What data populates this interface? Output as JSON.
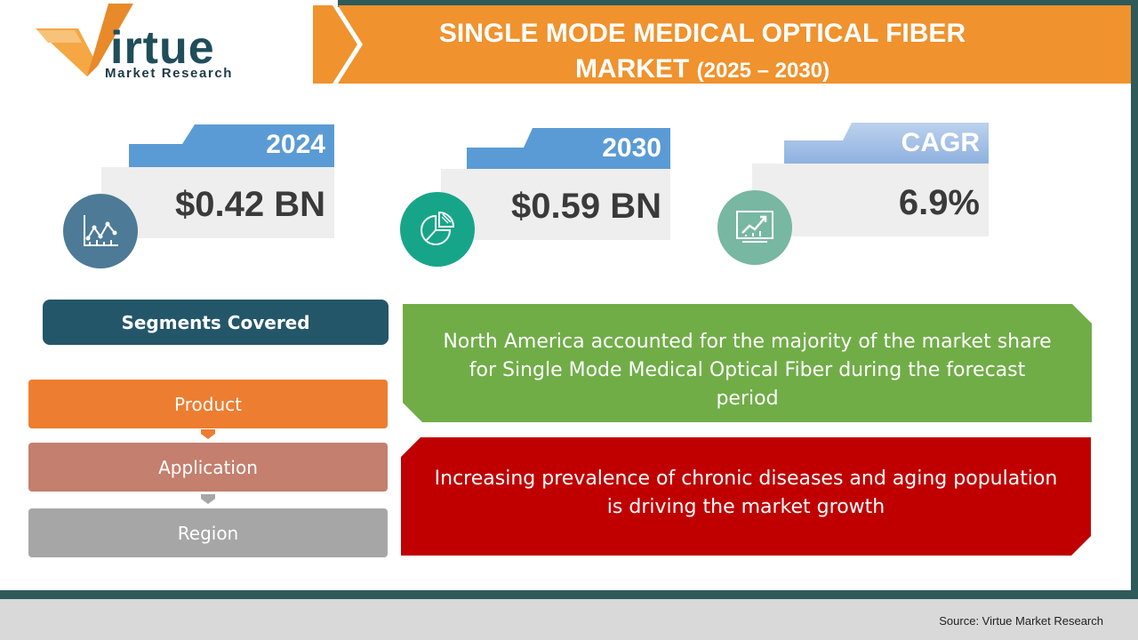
{
  "brand": {
    "logo_word": "irtue",
    "logo_subtitle": "Market Research",
    "colors": {
      "orange": "#f4a742",
      "teal": "#1f4e5a"
    }
  },
  "title": {
    "line1": "SINGLE MODE MEDICAL OPTICAL FIBER",
    "line2": "MARKET",
    "years": "(2025 – 2030)",
    "color": "#f0922d"
  },
  "stats": [
    {
      "label": "2024",
      "value": "$0.42 BN",
      "icon": "line-chart-icon",
      "tab_color": "#5b9bd5",
      "circle_color": "#4d7a96"
    },
    {
      "label": "2030",
      "value": "$0.59 BN",
      "icon": "pie-chart-icon",
      "tab_color": "#5b9bd5",
      "circle_color": "#17a589"
    },
    {
      "label": "CAGR",
      "value": "6.9%",
      "icon": "growth-chart-icon",
      "tab_color": "#a9c4e8",
      "circle_color": "#78b7a2"
    }
  ],
  "segments": {
    "heading": "Segments Covered",
    "items": [
      {
        "label": "Product",
        "color": "#ed7d31"
      },
      {
        "label": "Application",
        "color": "#c47f6e"
      },
      {
        "label": "Region",
        "color": "#a6a6a6"
      }
    ]
  },
  "insights": [
    {
      "text": "North America accounted for the majority of the market share for Single Mode Medical Optical Fiber during the forecast period",
      "color": "#70ad47"
    },
    {
      "text": "Increasing prevalence of chronic diseases and aging population is driving the market growth",
      "color": "#c00000"
    }
  ],
  "footer": {
    "source": "Source: Virtue Market Research"
  }
}
